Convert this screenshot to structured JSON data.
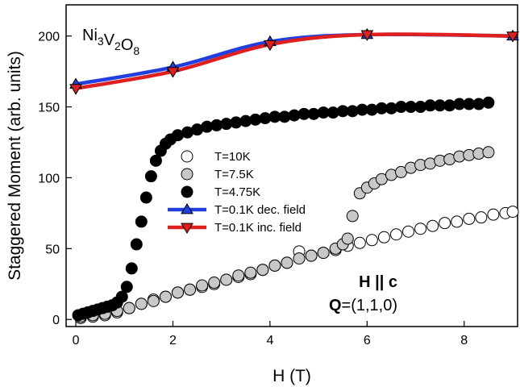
{
  "chart_data": {
    "type": "scatter",
    "title": "",
    "compound": {
      "base": [
        "Ni",
        "V",
        "O"
      ],
      "subs": [
        "3",
        "2",
        "8"
      ]
    },
    "xlabel": "H (T)",
    "ylabel": "Staggered Moment (arb. units)",
    "xlim": [
      -0.2,
      9.1
    ],
    "ylim": [
      -5,
      222
    ],
    "xticks": [
      0,
      2,
      4,
      6,
      8
    ],
    "yticks": [
      0,
      50,
      100,
      150,
      200
    ],
    "grid": false,
    "legend_position": "center-left",
    "annotations": {
      "field": {
        "bold": "H || c",
        "normal": ""
      },
      "q": {
        "bold": "Q",
        "normal": "=(1,1,0)"
      }
    },
    "series": [
      {
        "name": "T=10K",
        "marker": "circle",
        "fill": "#ffffff",
        "x": [
          0.1,
          0.35,
          0.6,
          0.85,
          1.1,
          1.35,
          1.6,
          1.85,
          2.1,
          2.35,
          2.6,
          2.85,
          3.1,
          3.35,
          3.6,
          3.85,
          4.1,
          4.35,
          4.6,
          4.85,
          5.1,
          5.35,
          5.6,
          5.85,
          6.1,
          6.35,
          6.6,
          6.85,
          7.1,
          7.35,
          7.6,
          7.85,
          8.1,
          8.35,
          8.6,
          8.85,
          9.0
        ],
        "y": [
          1,
          2,
          3,
          5,
          8,
          11,
          14,
          16,
          19,
          21,
          23,
          25,
          28,
          30,
          32,
          35,
          38,
          40,
          48,
          45,
          47,
          49,
          52,
          54,
          56,
          58,
          60,
          62,
          64,
          66,
          68,
          69,
          71,
          72,
          74,
          75,
          76
        ]
      },
      {
        "name": "T=7.5K",
        "marker": "circle",
        "fill": "#c8c8c8",
        "x": [
          0.1,
          0.35,
          0.6,
          0.85,
          1.1,
          1.35,
          1.6,
          1.85,
          2.1,
          2.35,
          2.6,
          2.85,
          3.1,
          3.35,
          3.6,
          3.85,
          4.1,
          4.35,
          4.6,
          4.85,
          5.1,
          5.35,
          5.5,
          5.6,
          5.7,
          5.85,
          6.0,
          6.15,
          6.3,
          6.5,
          6.7,
          6.9,
          7.1,
          7.3,
          7.5,
          7.7,
          7.9,
          8.1,
          8.3,
          8.5
        ],
        "y": [
          2,
          3,
          4,
          6,
          8,
          11,
          13,
          16,
          19,
          21,
          24,
          26,
          28,
          31,
          33,
          35,
          38,
          40,
          43,
          45,
          47,
          50,
          53,
          57,
          73,
          89,
          93,
          96,
          99,
          102,
          104,
          107,
          109,
          110,
          112,
          113,
          115,
          116,
          117,
          118
        ]
      },
      {
        "name": "T=4.75K",
        "marker": "circle",
        "fill": "#000000",
        "x": [
          0.05,
          0.15,
          0.25,
          0.35,
          0.45,
          0.55,
          0.65,
          0.75,
          0.85,
          0.95,
          1.05,
          1.15,
          1.25,
          1.35,
          1.45,
          1.55,
          1.65,
          1.75,
          1.85,
          1.95,
          2.1,
          2.3,
          2.5,
          2.7,
          2.9,
          3.1,
          3.3,
          3.5,
          3.7,
          3.9,
          4.1,
          4.3,
          4.5,
          4.7,
          4.9,
          5.1,
          5.3,
          5.5,
          5.7,
          5.9,
          6.1,
          6.3,
          6.5,
          6.7,
          6.9,
          7.1,
          7.3,
          7.5,
          7.7,
          7.9,
          8.1,
          8.3,
          8.5
        ],
        "y": [
          3,
          4,
          5,
          6,
          7,
          8,
          9,
          10,
          12,
          16,
          23,
          36,
          53,
          69,
          86,
          101,
          112,
          119,
          124,
          127,
          130,
          132,
          134,
          136,
          137,
          138,
          139,
          140,
          141,
          142,
          143,
          143,
          144,
          145,
          145,
          146,
          146,
          147,
          147,
          148,
          148,
          149,
          149,
          150,
          150,
          150,
          151,
          151,
          151,
          152,
          152,
          152,
          153
        ]
      },
      {
        "name": "T=0.1K dec. field",
        "marker": "triangle-up",
        "fill": "#1f3fe0",
        "line": "#1f3fe0",
        "x": [
          0,
          2,
          4,
          6,
          9
        ],
        "y": [
          166,
          178,
          196,
          201,
          200
        ]
      },
      {
        "name": "T=0.1K inc. field",
        "marker": "triangle-down",
        "fill": "#e01f1f",
        "line": "#e01f1f",
        "x": [
          0,
          2,
          4,
          6,
          9
        ],
        "y": [
          163,
          175,
          194,
          201,
          200
        ]
      }
    ]
  }
}
